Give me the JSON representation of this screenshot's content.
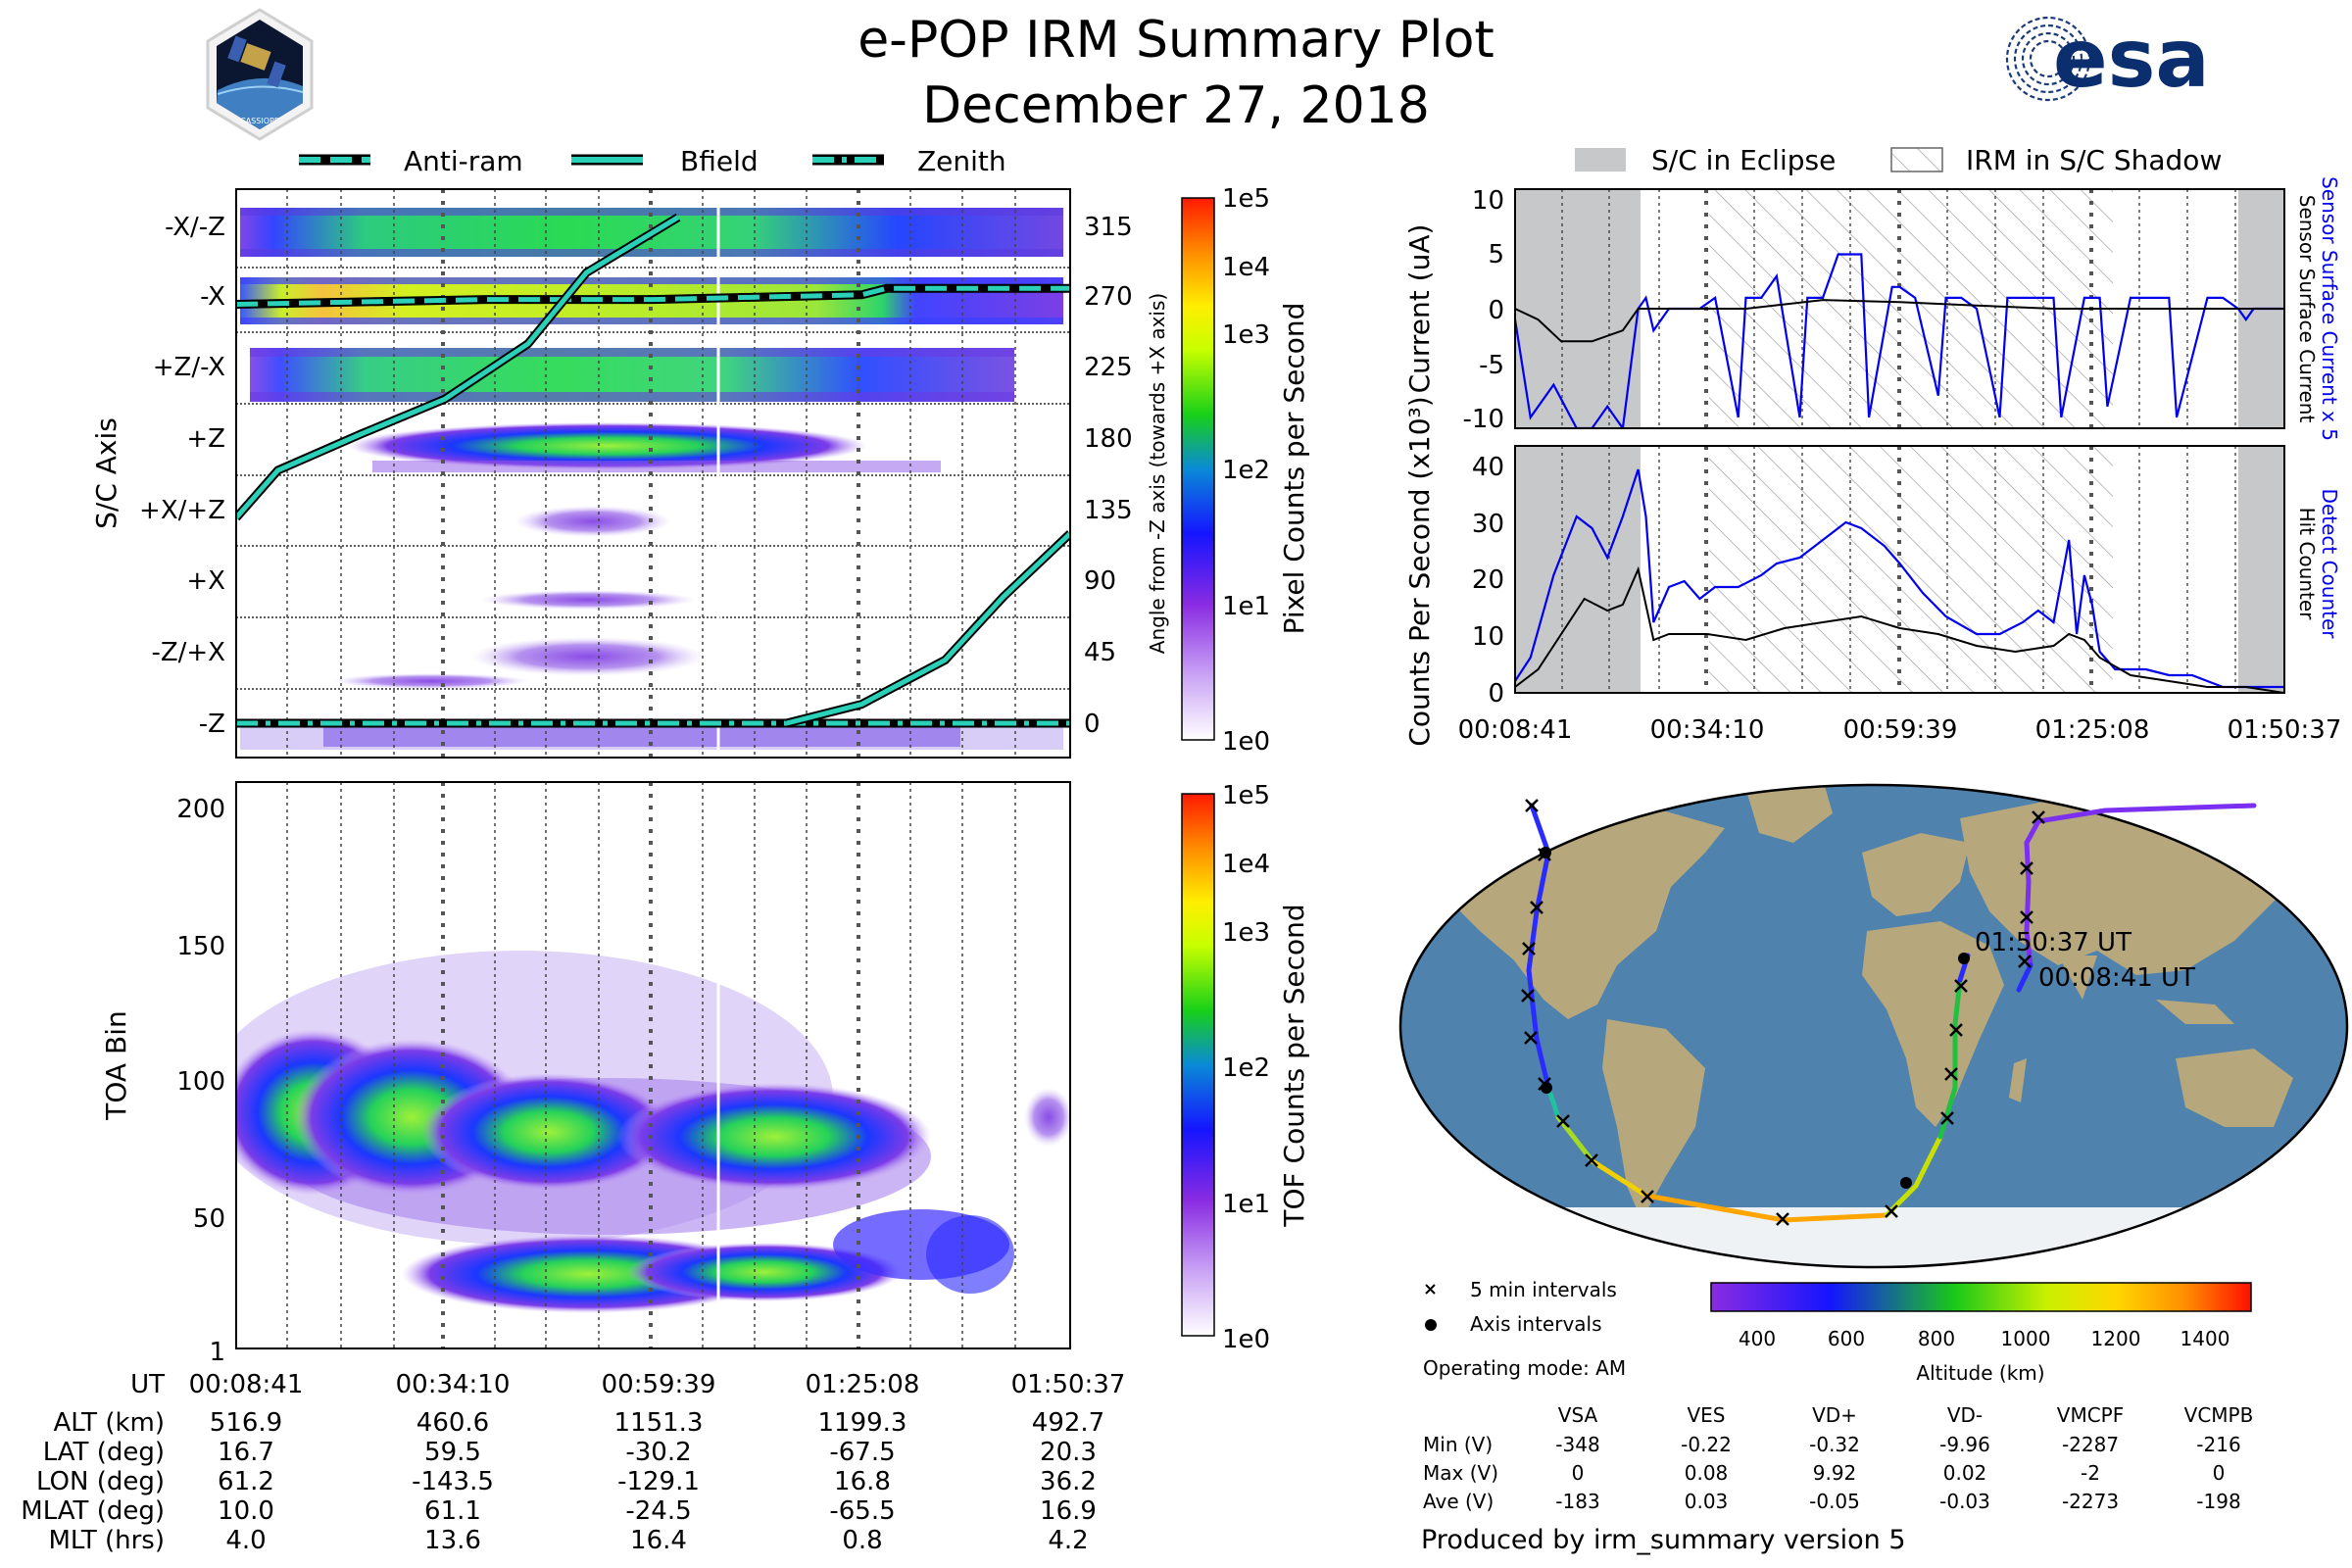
{
  "header": {
    "title": "e-POP IRM Summary Plot",
    "date": "December 27, 2018",
    "left_logo_text": "CASSIOPE",
    "right_logo_text": "esa",
    "left_logo_icon": "cassiope-mission-patch-icon",
    "right_logo_icon": "esa-logo-icon"
  },
  "time_axis": {
    "label": "UT",
    "ticks": [
      "00:08:41",
      "00:34:10",
      "00:59:39",
      "01:25:08",
      "01:50:37"
    ]
  },
  "legends": {
    "axis_lines": [
      "Anti-ram",
      "Bfield",
      "Zenith"
    ],
    "eclipse": [
      "S/C in Eclipse",
      "IRM in S/C Shadow"
    ]
  },
  "ephemeris": {
    "rows": [
      {
        "label": "ALT (km)",
        "values": [
          "516.9",
          "460.6",
          "1151.3",
          "1199.3",
          "492.7"
        ]
      },
      {
        "label": "LAT (deg)",
        "values": [
          "16.7",
          "59.5",
          "-30.2",
          "-67.5",
          "20.3"
        ]
      },
      {
        "label": "LON (deg)",
        "values": [
          "61.2",
          "-143.5",
          "-129.1",
          "16.8",
          "36.2"
        ]
      },
      {
        "label": "MLAT (deg)",
        "values": [
          "10.0",
          "61.1",
          "-24.5",
          "-65.5",
          "16.9"
        ]
      },
      {
        "label": "MLT (hrs)",
        "values": [
          "4.0",
          "13.6",
          "16.4",
          "0.8",
          "4.2"
        ]
      }
    ]
  },
  "map": {
    "start_label": "00:08:41 UT",
    "end_label": "01:50:37 UT",
    "legend": [
      "5 min intervals",
      "Axis intervals"
    ],
    "colorbar_label": "Altitude (km)",
    "colorbar_ticks": [
      "400",
      "600",
      "800",
      "1000",
      "1200",
      "1400"
    ],
    "colors": {
      "ocean": "#4f82ad",
      "land": "#b6a77c",
      "ice": "#eef2f5"
    }
  },
  "operating_mode": "Operating mode: AM",
  "voltage_table": {
    "headers": [
      "VSA",
      "VES",
      "VD+",
      "VD-",
      "VMCPF",
      "VCMPB"
    ],
    "rows": [
      {
        "label": "Min (V)",
        "values": [
          "-348",
          "-0.22",
          "-0.32",
          "-9.96",
          "-2287",
          "-216"
        ]
      },
      {
        "label": "Max (V)",
        "values": [
          "0",
          "0.08",
          "9.92",
          "0.02",
          "-2",
          "0"
        ]
      },
      {
        "label": "Ave (V)",
        "values": [
          "-183",
          "0.03",
          "-0.05",
          "-0.03",
          "-2273",
          "-198"
        ]
      }
    ]
  },
  "footer": "Produced by irm_summary version 5",
  "chart_data": [
    {
      "id": "sc_axis",
      "type": "heatmap",
      "ylabel": "S/C Axis",
      "categories": [
        "-X/-Z",
        "-X",
        "+Z/-X",
        "+Z",
        "+X/+Z",
        "+X",
        "-Z/+X",
        "-Z"
      ],
      "right_ylabel": "Angle from -Z axis (towards +X axis)",
      "right_ticks": [
        "315",
        "270",
        "225",
        "180",
        "135",
        "90",
        "45",
        "0"
      ],
      "right_ylim": [
        0,
        337.5
      ],
      "colorbar": {
        "label": "Pixel Counts per Second",
        "ticks": [
          "1e0",
          "1e1",
          "1e2",
          "1e3",
          "1e4",
          "1e5"
        ]
      },
      "lines": [
        {
          "name": "Anti-ram",
          "style": "dashed",
          "x": [
            0,
            0.3,
            0.5,
            0.75,
            0.78,
            1
          ],
          "y": [
            265,
            268,
            268,
            271,
            275,
            275
          ]
        },
        {
          "name": "Zenith",
          "style": "dashdot",
          "x": [
            0,
            0.3,
            0.5,
            1
          ],
          "y": [
            0,
            0,
            0,
            0
          ]
        },
        {
          "name": "Bfield",
          "style": "solid",
          "x": [
            0,
            0.05,
            0.15,
            0.25,
            0.35,
            0.42,
            0.53,
            0.66,
            0.75,
            0.85,
            0.92,
            1
          ],
          "y": [
            130,
            160,
            183,
            205,
            240,
            285,
            320,
            0,
            12,
            40,
            80,
            120
          ]
        }
      ]
    },
    {
      "id": "toa",
      "type": "heatmap",
      "ylabel": "TOA Bin",
      "yticks": [
        "1",
        "50",
        "100",
        "150",
        "200"
      ],
      "ylim": [
        1,
        210
      ],
      "colorbar": {
        "label": "TOF Counts per Second",
        "ticks": [
          "1e0",
          "1e1",
          "1e2",
          "1e3",
          "1e4",
          "1e5"
        ]
      }
    },
    {
      "id": "current",
      "type": "line",
      "ylabel": "Current (uA)",
      "ylim": [
        -11,
        11
      ],
      "yticks": [
        "10",
        "5",
        "0",
        "-5",
        "-10"
      ],
      "right_labels": [
        "Sensor Surface Current x 5",
        "Sensor Surface Current"
      ],
      "series": [
        {
          "name": "Sensor Surface Current x 5",
          "color": "#0000ee",
          "x": [
            0,
            0.02,
            0.05,
            0.08,
            0.1,
            0.12,
            0.14,
            0.16,
            0.17,
            0.18,
            0.2,
            0.22,
            0.24,
            0.26,
            0.29,
            0.3,
            0.32,
            0.34,
            0.37,
            0.38,
            0.4,
            0.42,
            0.45,
            0.46,
            0.49,
            0.5,
            0.52,
            0.55,
            0.56,
            0.58,
            0.6,
            0.63,
            0.64,
            0.66,
            0.7,
            0.71,
            0.74,
            0.76,
            0.77,
            0.8,
            0.84,
            0.85,
            0.86,
            0.9,
            0.92,
            0.94,
            0.95,
            0.96,
            1
          ],
          "y": [
            -1,
            -10,
            -7,
            -11,
            -11,
            -9,
            -11,
            0,
            1,
            -2,
            0,
            0,
            0,
            1,
            -10,
            1,
            1,
            3,
            -10,
            1,
            1,
            5,
            5,
            -10,
            2,
            2,
            1,
            -8,
            1,
            1,
            0,
            -10,
            1,
            1,
            1,
            -10,
            1,
            1,
            -9,
            1,
            1,
            1,
            -10,
            1,
            1,
            0,
            -1,
            0,
            0
          ]
        },
        {
          "name": "Sensor Surface Current",
          "color": "#000000",
          "x": [
            0,
            0.03,
            0.06,
            0.1,
            0.14,
            0.16,
            0.2,
            0.3,
            0.4,
            0.5,
            0.6,
            0.7,
            0.8,
            0.9,
            0.95,
            1
          ],
          "y": [
            0,
            -1,
            -3,
            -3,
            -2,
            0,
            0,
            0,
            0.8,
            0.6,
            0.3,
            0,
            0,
            0,
            0,
            0
          ]
        }
      ],
      "eclipse_spans": [
        [
          0,
          0.163
        ],
        [
          0.94,
          1
        ]
      ],
      "shadow_spans": [
        [
          0.252,
          0.776
        ]
      ]
    },
    {
      "id": "counts",
      "type": "line",
      "ylabel": "Counts Per Second (x10³)",
      "ylim": [
        0,
        42
      ],
      "yticks": [
        "0",
        "10",
        "20",
        "30",
        "40"
      ],
      "right_labels": [
        "Detect Counter",
        "Hit Counter"
      ],
      "series": [
        {
          "name": "Detect Counter",
          "color": "#0000ee",
          "x": [
            0,
            0.02,
            0.05,
            0.08,
            0.1,
            0.12,
            0.14,
            0.16,
            0.17,
            0.18,
            0.2,
            0.22,
            0.24,
            0.26,
            0.29,
            0.32,
            0.34,
            0.37,
            0.4,
            0.43,
            0.45,
            0.48,
            0.5,
            0.53,
            0.56,
            0.6,
            0.63,
            0.66,
            0.68,
            0.7,
            0.72,
            0.73,
            0.74,
            0.75,
            0.76,
            0.78,
            0.8,
            0.82,
            0.85,
            0.88,
            0.9,
            0.92,
            0.95,
            1
          ],
          "y": [
            2,
            6,
            20,
            30,
            28,
            23,
            30,
            38,
            30,
            12,
            18,
            19,
            16,
            18,
            18,
            20,
            22,
            23,
            26,
            29,
            28,
            25,
            22,
            17,
            13,
            10,
            10,
            12,
            14,
            12,
            26,
            10,
            20,
            15,
            7,
            4,
            4,
            4,
            3,
            3,
            2,
            1,
            1,
            1
          ]
        },
        {
          "name": "Hit Counter",
          "color": "#000000",
          "x": [
            0,
            0.03,
            0.06,
            0.09,
            0.12,
            0.14,
            0.16,
            0.18,
            0.2,
            0.25,
            0.3,
            0.35,
            0.4,
            0.45,
            0.5,
            0.55,
            0.6,
            0.65,
            0.7,
            0.72,
            0.74,
            0.76,
            0.8,
            0.85,
            0.9,
            0.95,
            1
          ],
          "y": [
            1,
            4,
            10,
            16,
            14,
            15,
            21,
            9,
            10,
            10,
            9,
            11,
            12,
            13,
            11,
            10,
            8,
            7,
            8,
            10,
            9,
            6,
            3,
            2,
            1,
            1,
            0
          ]
        }
      ],
      "eclipse_spans": [
        [
          0,
          0.163
        ],
        [
          0.94,
          1
        ]
      ],
      "shadow_spans": [
        [
          0.252,
          0.776
        ]
      ]
    }
  ]
}
